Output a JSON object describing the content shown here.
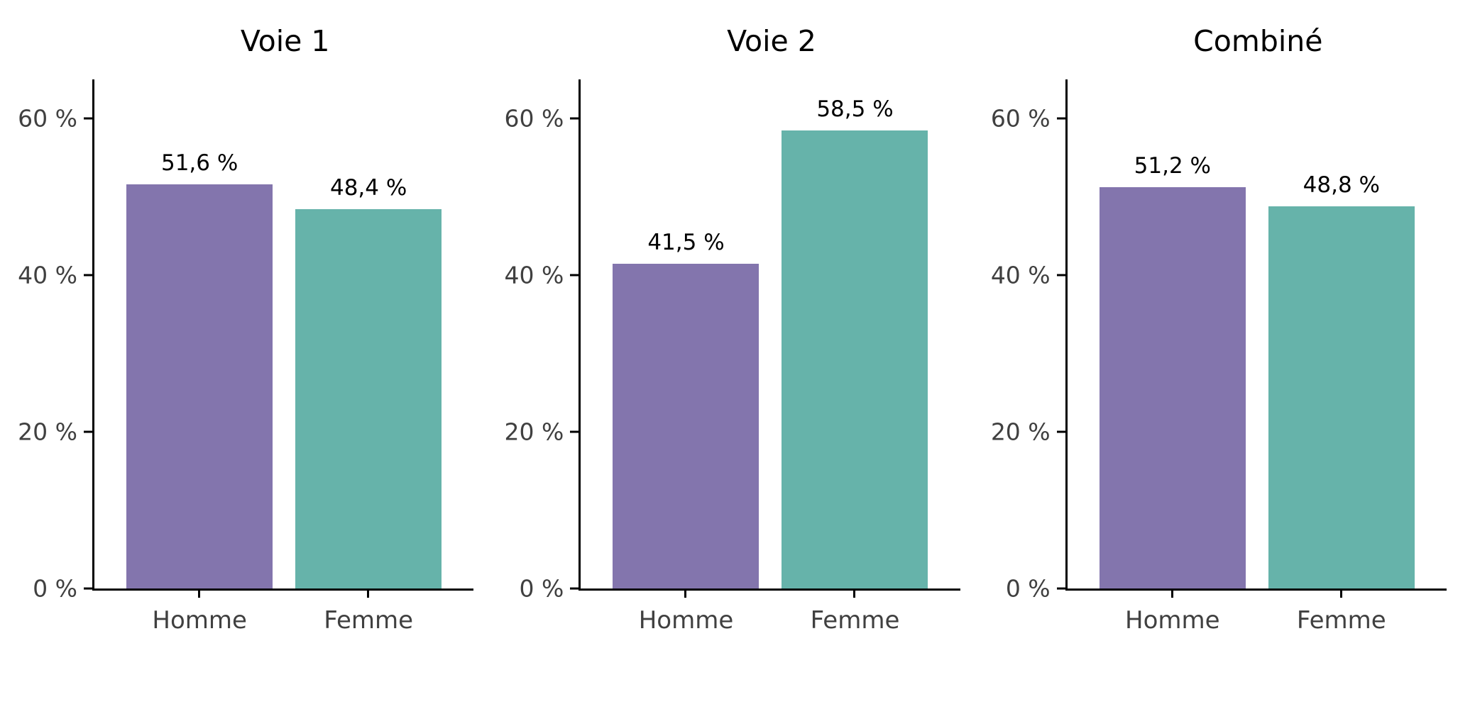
{
  "colors": {
    "palette": [
      "#8375AD",
      "#66B3AA"
    ],
    "axis": "#000000",
    "tick_text": "#404040",
    "background": "#FFFFFF"
  },
  "chart_data": [
    {
      "type": "bar",
      "title": "Voie 1",
      "categories": [
        "Homme",
        "Femme"
      ],
      "values": [
        51.6,
        48.4
      ],
      "value_labels": [
        "51,6 %",
        "48,4 %"
      ],
      "ylim": [
        0,
        65
      ],
      "yticks": [
        0,
        20,
        40,
        60
      ],
      "ytick_labels": [
        "0 %",
        "20 %",
        "40 %",
        "60 %"
      ],
      "xlabel": "",
      "ylabel": "",
      "grid": false,
      "legend": false
    },
    {
      "type": "bar",
      "title": "Voie 2",
      "categories": [
        "Homme",
        "Femme"
      ],
      "values": [
        41.5,
        58.5
      ],
      "value_labels": [
        "41,5 %",
        "58,5 %"
      ],
      "ylim": [
        0,
        65
      ],
      "yticks": [
        0,
        20,
        40,
        60
      ],
      "ytick_labels": [
        "0 %",
        "20 %",
        "40 %",
        "60 %"
      ],
      "xlabel": "",
      "ylabel": "",
      "grid": false,
      "legend": false
    },
    {
      "type": "bar",
      "title": "Combiné",
      "categories": [
        "Homme",
        "Femme"
      ],
      "values": [
        51.2,
        48.8
      ],
      "value_labels": [
        "51,2 %",
        "48,8 %"
      ],
      "ylim": [
        0,
        65
      ],
      "yticks": [
        0,
        20,
        40,
        60
      ],
      "ytick_labels": [
        "0 %",
        "20 %",
        "40 %",
        "60 %"
      ],
      "xlabel": "",
      "ylabel": "",
      "grid": false,
      "legend": false
    }
  ]
}
